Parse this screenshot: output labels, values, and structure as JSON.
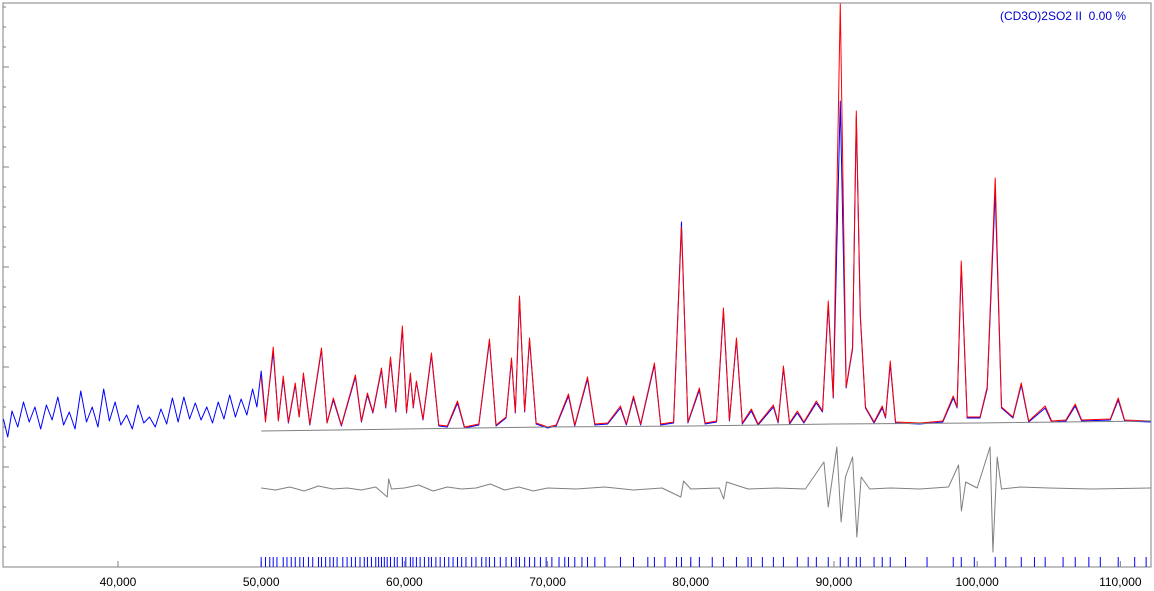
{
  "chart_data": {
    "type": "line",
    "legend": "(CD3O)2SO2 II  0.00 %",
    "legend_color": "#0000cc",
    "xlim": [
      31970,
      112140
    ],
    "ylim": [
      0,
      5640
    ],
    "xticks": [
      {
        "value": 40000,
        "label": "40,000"
      },
      {
        "value": 50000,
        "label": "50,000"
      },
      {
        "value": 60000,
        "label": "60,000"
      },
      {
        "value": 70000,
        "label": "70,000"
      },
      {
        "value": 80000,
        "label": "80,000"
      },
      {
        "value": 90000,
        "label": "90,000"
      },
      {
        "value": 100000,
        "label": "100,000"
      },
      {
        "value": 110000,
        "label": "110,000"
      }
    ],
    "yticks": [
      0,
      200,
      400,
      600,
      800,
      1000,
      1200,
      1400,
      1600,
      1800,
      2000,
      2200,
      2400,
      2600,
      2800,
      3000,
      3200,
      3400,
      3600,
      3800,
      4000,
      4200,
      4400,
      4600,
      4800,
      5000,
      5200,
      5400,
      5600
    ],
    "series": [
      {
        "color": "#0000ff",
        "x": [
          32000,
          32300,
          32600,
          33000,
          33400,
          33800,
          34200,
          34600,
          35000,
          35400,
          35800,
          36200,
          36600,
          37000,
          37400,
          37800,
          38200,
          38600,
          39000,
          39400,
          39800,
          40200,
          40600,
          41000,
          41400,
          41800,
          42200,
          42600,
          43000,
          43400,
          43800,
          44200,
          44600,
          45000,
          45400,
          45800,
          46200,
          46600,
          47000,
          47400,
          47800,
          48200,
          48600,
          49000,
          49400,
          49700,
          50000,
          50300,
          50840,
          51200,
          51540,
          51900,
          52380,
          52650,
          52950,
          53400,
          54210,
          54600,
          55040,
          55600,
          56580,
          57000,
          57420,
          57800,
          58400,
          58700,
          59030,
          59400,
          59860,
          60150,
          60420,
          60620,
          60840,
          61300,
          61890,
          62400,
          63000,
          63710,
          64200,
          65200,
          65940,
          66400,
          67100,
          67480,
          67750,
          68040,
          68400,
          68740,
          69200,
          70000,
          70600,
          71460,
          71900,
          72790,
          73300,
          74200,
          75090,
          75500,
          76000,
          76500,
          77460,
          77900,
          78800,
          79350,
          79800,
          80600,
          81000,
          81800,
          82280,
          82700,
          83190,
          83600,
          84230,
          84700,
          85770,
          86100,
          86470,
          86900,
          87440,
          87900,
          88770,
          89200,
          89600,
          89950,
          90440,
          90850,
          91300,
          91560,
          91840,
          92200,
          92800,
          93370,
          93600,
          93930,
          94300,
          96000,
          97600,
          98330,
          98600,
          98890,
          99300,
          100200,
          100700,
          101260,
          101700,
          102500,
          103080,
          103600,
          104750,
          105200,
          106200,
          106850,
          107300,
          109300,
          109850,
          110300,
          112100
        ],
        "values": [
          1480,
          1300,
          1560,
          1400,
          1650,
          1450,
          1600,
          1380,
          1620,
          1470,
          1700,
          1420,
          1550,
          1380,
          1760,
          1450,
          1600,
          1400,
          1780,
          1460,
          1650,
          1420,
          1520,
          1380,
          1620,
          1440,
          1500,
          1400,
          1580,
          1430,
          1690,
          1450,
          1700,
          1480,
          1640,
          1470,
          1600,
          1440,
          1650,
          1480,
          1720,
          1500,
          1680,
          1520,
          1780,
          1600,
          1960,
          1480,
          2150,
          1470,
          1880,
          1440,
          1820,
          1500,
          1920,
          1420,
          2170,
          1440,
          1670,
          1410,
          1900,
          1450,
          1720,
          1540,
          1970,
          1590,
          2080,
          1550,
          2380,
          1540,
          1920,
          1590,
          1850,
          1470,
          2120,
          1410,
          1400,
          1640,
          1390,
          1420,
          2260,
          1410,
          1490,
          2070,
          1540,
          2690,
          1550,
          2270,
          1430,
          1390,
          1410,
          1710,
          1410,
          1880,
          1420,
          1430,
          1590,
          1420,
          1690,
          1420,
          2020,
          1420,
          1440,
          3450,
          1440,
          1770,
          1430,
          1450,
          2560,
          1460,
          2270,
          1430,
          1560,
          1420,
          1600,
          1440,
          1990,
          1430,
          1540,
          1440,
          1640,
          1550,
          2620,
          1690,
          4660,
          1790,
          2180,
          4500,
          2500,
          1590,
          1440,
          1590,
          1490,
          2030,
          1440,
          1430,
          1450,
          1690,
          1590,
          3020,
          1490,
          1490,
          1780,
          3750,
          1590,
          1490,
          1820,
          1450,
          1590,
          1450,
          1460,
          1610,
          1460,
          1470,
          1670,
          1460,
          1450
        ]
      },
      {
        "color": "#ff0000",
        "x": [
          50000,
          50300,
          50840,
          51200,
          51540,
          51900,
          52380,
          52650,
          52950,
          53400,
          54210,
          54600,
          55040,
          55600,
          56580,
          57000,
          57420,
          57800,
          58400,
          58700,
          59030,
          59400,
          59860,
          60150,
          60420,
          60620,
          60840,
          61300,
          61890,
          62400,
          63000,
          63710,
          64200,
          65200,
          65940,
          66400,
          67100,
          67480,
          67750,
          68040,
          68400,
          68740,
          69200,
          70000,
          70600,
          71460,
          71900,
          72790,
          73300,
          74200,
          75090,
          75500,
          76000,
          76500,
          77460,
          77900,
          78800,
          79350,
          79800,
          80600,
          81000,
          81800,
          82280,
          82700,
          83190,
          83600,
          84230,
          84700,
          85770,
          86100,
          86470,
          86900,
          87440,
          87900,
          88770,
          89200,
          89600,
          89950,
          90440,
          90850,
          91300,
          91560,
          91840,
          92200,
          92800,
          93370,
          93600,
          93930,
          94300,
          96000,
          97600,
          98330,
          98600,
          98890,
          99300,
          100200,
          100700,
          101260,
          101700,
          102500,
          103080,
          103600,
          104750,
          105200,
          106200,
          106850,
          107300,
          109300,
          109850,
          110300,
          112100
        ],
        "values": [
          1900,
          1450,
          2200,
          1460,
          1910,
          1450,
          1840,
          1500,
          1940,
          1430,
          2190,
          1440,
          1690,
          1420,
          1920,
          1460,
          1740,
          1550,
          1990,
          1600,
          2100,
          1560,
          2410,
          1550,
          1940,
          1600,
          1860,
          1480,
          2140,
          1420,
          1410,
          1660,
          1400,
          1430,
          2280,
          1420,
          1500,
          2090,
          1550,
          2710,
          1560,
          2290,
          1440,
          1400,
          1420,
          1730,
          1420,
          1900,
          1430,
          1440,
          1610,
          1430,
          1710,
          1430,
          2040,
          1430,
          1450,
          3400,
          1450,
          1790,
          1440,
          1460,
          2590,
          1470,
          2290,
          1440,
          1580,
          1430,
          1620,
          1450,
          2010,
          1440,
          1560,
          1450,
          1660,
          1560,
          2660,
          1700,
          5630,
          1800,
          2200,
          4560,
          2530,
          1600,
          1450,
          1610,
          1500,
          2060,
          1450,
          1440,
          1460,
          1710,
          1600,
          3060,
          1500,
          1500,
          1800,
          3890,
          1600,
          1500,
          1840,
          1460,
          1610,
          1460,
          1470,
          1630,
          1470,
          1480,
          1690,
          1470,
          1460
        ]
      },
      {
        "color": "#808080",
        "x": [
          50000,
          60000,
          70000,
          80000,
          90000,
          100000,
          112100
        ],
        "values": [
          1360,
          1380,
          1400,
          1410,
          1430,
          1440,
          1460
        ]
      },
      {
        "color": "#808080",
        "x": [
          50000,
          51000,
          52000,
          53000,
          54000,
          55000,
          56000,
          57000,
          58000,
          58800,
          58900,
          59100,
          60000,
          61000,
          62000,
          63000,
          64000,
          65000,
          66000,
          67000,
          68000,
          69000,
          70000,
          72000,
          74000,
          76000,
          78000,
          79300,
          79500,
          80000,
          82000,
          82300,
          82500,
          84000,
          86000,
          88000,
          89300,
          89600,
          90200,
          90500,
          90800,
          91300,
          91600,
          91900,
          92500,
          94000,
          96000,
          98000,
          98700,
          98900,
          99200,
          100000,
          100900,
          101100,
          101400,
          101700,
          103000,
          105000,
          108000,
          112100
        ],
        "values": [
          790,
          770,
          800,
          760,
          810,
          780,
          790,
          770,
          800,
          700,
          880,
          780,
          790,
          820,
          760,
          800,
          780,
          790,
          830,
          770,
          800,
          760,
          790,
          780,
          800,
          770,
          790,
          700,
          860,
          780,
          790,
          680,
          850,
          780,
          790,
          780,
          1050,
          600,
          1200,
          450,
          900,
          1100,
          300,
          900,
          780,
          790,
          780,
          800,
          1020,
          560,
          850,
          790,
          1200,
          150,
          1100,
          780,
          800,
          790,
          780,
          790
        ]
      }
    ],
    "reflections": {
      "color": "#0000ff",
      "x": [
        50000,
        50300,
        50600,
        50840,
        51100,
        51540,
        51800,
        52100,
        52380,
        52700,
        52950,
        53300,
        53600,
        54000,
        54210,
        54500,
        54800,
        55040,
        55300,
        55700,
        56000,
        56300,
        56580,
        56900,
        57200,
        57420,
        57700,
        58000,
        58200,
        58400,
        58600,
        58800,
        59030,
        59300,
        59500,
        59860,
        60100,
        60420,
        60600,
        60840,
        61100,
        61400,
        61700,
        61890,
        62200,
        62500,
        62800,
        63100,
        63400,
        63710,
        64000,
        64300,
        64700,
        65000,
        65400,
        65700,
        65940,
        66300,
        66700,
        67100,
        67480,
        67800,
        68040,
        68400,
        68740,
        69100,
        69500,
        69900,
        70300,
        70800,
        71200,
        71460,
        71900,
        72400,
        72790,
        73300,
        74000,
        75090,
        76000,
        77000,
        77460,
        78200,
        79000,
        79350,
        80000,
        80600,
        81500,
        82280,
        83190,
        84000,
        84230,
        85000,
        85770,
        86470,
        87440,
        88200,
        88770,
        89600,
        90440,
        91000,
        91560,
        91840,
        92800,
        93370,
        93930,
        95000,
        96500,
        98330,
        98890,
        99800,
        101260,
        102000,
        103080,
        104000,
        104750,
        106000,
        106850,
        107800,
        108600,
        109850,
        111000,
        111800
      ]
    }
  }
}
